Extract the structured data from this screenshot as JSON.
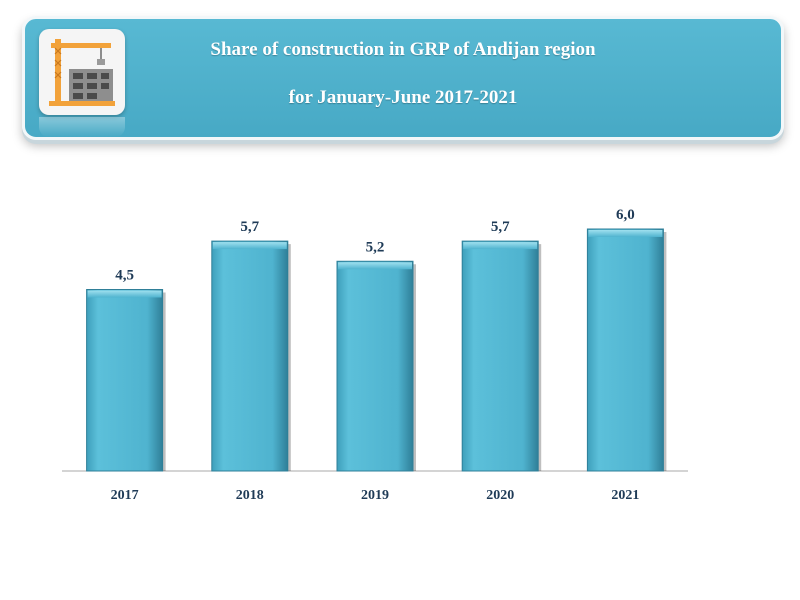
{
  "header": {
    "title_line1": "Share of construction in GRP of Andijan region",
    "title_line2": "for January-June 2017-2021",
    "logo_icon": "construction-crane-icon"
  },
  "chart_data": {
    "type": "bar",
    "categories": [
      "2017",
      "2018",
      "2019",
      "2020",
      "2021"
    ],
    "values": [
      4.5,
      5.7,
      5.2,
      5.7,
      6.0
    ],
    "value_labels": [
      "4,5",
      "5,7",
      "5,2",
      "5,7",
      "6,0"
    ],
    "title": "Share of construction in GRP of Andijan region for January-June 2017-2021",
    "xlabel": "",
    "ylabel": "",
    "ylim": [
      0,
      6.0
    ],
    "grid": false,
    "legend": "none",
    "bar_color": "#4fb3cf"
  }
}
